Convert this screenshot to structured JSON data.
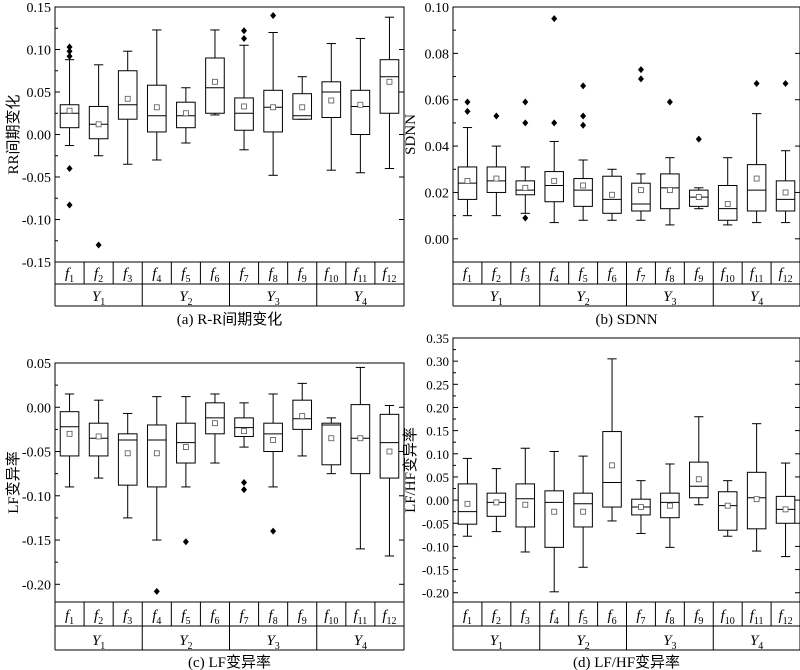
{
  "chart_data": [
    {
      "type": "box",
      "caption": "(a) R-R间期变化",
      "ylabel": "RR间期变化",
      "ylim": [
        -0.15,
        0.15
      ],
      "yticks": [
        -0.15,
        -0.1,
        -0.05,
        0.0,
        0.05,
        0.1,
        0.15
      ],
      "tick_labels": [
        "-0.15",
        "-0.10",
        "-0.05",
        "0.00",
        "0.05",
        "0.10",
        "0.15"
      ],
      "categories": [
        "f1",
        "f2",
        "f3",
        "f4",
        "f5",
        "f6",
        "f7",
        "f8",
        "f9",
        "f10",
        "f11",
        "f12"
      ],
      "groups": [
        "Y1",
        "Y2",
        "Y3",
        "Y4"
      ],
      "boxes": [
        {
          "min": -0.013,
          "q1": 0.008,
          "median": 0.025,
          "q3": 0.035,
          "max": 0.088,
          "mean": 0.028,
          "outliers": [
            0.103,
            0.098,
            0.092,
            -0.04,
            -0.083
          ]
        },
        {
          "min": -0.025,
          "q1": -0.005,
          "median": 0.012,
          "q3": 0.033,
          "max": 0.082,
          "mean": 0.012,
          "outliers": [
            -0.13
          ]
        },
        {
          "min": -0.035,
          "q1": 0.018,
          "median": 0.035,
          "q3": 0.075,
          "max": 0.098,
          "mean": 0.042,
          "outliers": []
        },
        {
          "min": -0.03,
          "q1": 0.003,
          "median": 0.022,
          "q3": 0.058,
          "max": 0.123,
          "mean": 0.032,
          "outliers": []
        },
        {
          "min": -0.01,
          "q1": 0.008,
          "median": 0.022,
          "q3": 0.038,
          "max": 0.055,
          "mean": 0.025,
          "outliers": []
        },
        {
          "min": 0.023,
          "q1": 0.025,
          "median": 0.055,
          "q3": 0.09,
          "max": 0.123,
          "mean": 0.062,
          "outliers": []
        },
        {
          "min": -0.018,
          "q1": 0.005,
          "median": 0.025,
          "q3": 0.043,
          "max": 0.105,
          "mean": 0.033,
          "outliers": [
            0.122,
            0.113
          ]
        },
        {
          "min": -0.048,
          "q1": 0.003,
          "median": 0.032,
          "q3": 0.052,
          "max": 0.12,
          "mean": 0.032,
          "outliers": [
            0.14
          ]
        },
        {
          "min": 0.018,
          "q1": 0.018,
          "median": 0.022,
          "q3": 0.048,
          "max": 0.068,
          "mean": 0.032,
          "outliers": []
        },
        {
          "min": -0.042,
          "q1": 0.02,
          "median": 0.05,
          "q3": 0.062,
          "max": 0.107,
          "mean": 0.04,
          "outliers": []
        },
        {
          "min": -0.045,
          "q1": 0.0,
          "median": 0.033,
          "q3": 0.052,
          "max": 0.113,
          "mean": 0.035,
          "outliers": []
        },
        {
          "min": -0.04,
          "q1": 0.025,
          "median": 0.068,
          "q3": 0.088,
          "max": 0.138,
          "mean": 0.062,
          "outliers": []
        }
      ]
    },
    {
      "type": "box",
      "caption": "(b) SDNN",
      "ylabel": "SDNN",
      "ylim": [
        -0.01,
        0.1
      ],
      "yticks": [
        0.0,
        0.02,
        0.04,
        0.06,
        0.08,
        0.1
      ],
      "tick_labels": [
        "0.00",
        "0.02",
        "0.04",
        "0.06",
        "0.08",
        "0.10"
      ],
      "categories": [
        "f1",
        "f2",
        "f3",
        "f4",
        "f5",
        "f6",
        "f7",
        "f8",
        "f9",
        "f10",
        "f11",
        "f12"
      ],
      "groups": [
        "Y1",
        "Y2",
        "Y3",
        "Y4"
      ],
      "boxes": [
        {
          "min": 0.01,
          "q1": 0.017,
          "median": 0.024,
          "q3": 0.031,
          "max": 0.048,
          "mean": 0.025,
          "outliers": [
            0.059,
            0.055
          ]
        },
        {
          "min": 0.01,
          "q1": 0.02,
          "median": 0.025,
          "q3": 0.031,
          "max": 0.04,
          "mean": 0.026,
          "outliers": [
            0.053
          ]
        },
        {
          "min": 0.011,
          "q1": 0.019,
          "median": 0.021,
          "q3": 0.025,
          "max": 0.031,
          "mean": 0.022,
          "outliers": [
            0.059,
            0.05,
            0.009
          ]
        },
        {
          "min": 0.007,
          "q1": 0.016,
          "median": 0.023,
          "q3": 0.029,
          "max": 0.042,
          "mean": 0.025,
          "outliers": [
            0.095,
            0.05
          ]
        },
        {
          "min": 0.008,
          "q1": 0.014,
          "median": 0.021,
          "q3": 0.026,
          "max": 0.034,
          "mean": 0.023,
          "outliers": [
            0.066,
            0.053,
            0.049
          ]
        },
        {
          "min": 0.008,
          "q1": 0.011,
          "median": 0.017,
          "q3": 0.027,
          "max": 0.03,
          "mean": 0.019,
          "outliers": []
        },
        {
          "min": 0.008,
          "q1": 0.012,
          "median": 0.015,
          "q3": 0.024,
          "max": 0.028,
          "mean": 0.021,
          "outliers": [
            0.073,
            0.069
          ]
        },
        {
          "min": 0.006,
          "q1": 0.013,
          "median": 0.022,
          "q3": 0.028,
          "max": 0.035,
          "mean": 0.021,
          "outliers": [
            0.059
          ]
        },
        {
          "min": 0.013,
          "q1": 0.014,
          "median": 0.018,
          "q3": 0.021,
          "max": 0.022,
          "mean": 0.018,
          "outliers": [
            0.043
          ]
        },
        {
          "min": 0.006,
          "q1": 0.008,
          "median": 0.013,
          "q3": 0.023,
          "max": 0.035,
          "mean": 0.015,
          "outliers": []
        },
        {
          "min": 0.007,
          "q1": 0.012,
          "median": 0.021,
          "q3": 0.032,
          "max": 0.054,
          "mean": 0.026,
          "outliers": [
            0.067
          ]
        },
        {
          "min": 0.007,
          "q1": 0.012,
          "median": 0.017,
          "q3": 0.025,
          "max": 0.038,
          "mean": 0.02,
          "outliers": [
            0.067
          ]
        }
      ]
    },
    {
      "type": "box",
      "caption": "(c) LF变异率",
      "ylabel": "LF变异率",
      "ylim": [
        -0.22,
        0.05
      ],
      "yticks": [
        -0.2,
        -0.15,
        -0.1,
        -0.05,
        0.0,
        0.05
      ],
      "tick_labels": [
        "-0.20",
        "-0.15",
        "-0.10",
        "-0.05",
        "0.00",
        "0.05"
      ],
      "categories": [
        "f1",
        "f2",
        "f3",
        "f4",
        "f5",
        "f6",
        "f7",
        "f8",
        "f9",
        "f10",
        "f11",
        "f12"
      ],
      "groups": [
        "Y1",
        "Y2",
        "Y3",
        "Y4"
      ],
      "boxes": [
        {
          "min": -0.09,
          "q1": -0.055,
          "median": -0.022,
          "q3": -0.005,
          "max": 0.015,
          "mean": -0.03,
          "outliers": []
        },
        {
          "min": -0.08,
          "q1": -0.055,
          "median": -0.035,
          "q3": -0.018,
          "max": 0.008,
          "mean": -0.033,
          "outliers": []
        },
        {
          "min": -0.125,
          "q1": -0.088,
          "median": -0.037,
          "q3": -0.03,
          "max": -0.007,
          "mean": -0.052,
          "outliers": []
        },
        {
          "min": -0.15,
          "q1": -0.09,
          "median": -0.037,
          "q3": -0.02,
          "max": 0.012,
          "mean": -0.052,
          "outliers": [
            -0.208
          ]
        },
        {
          "min": -0.09,
          "q1": -0.063,
          "median": -0.04,
          "q3": -0.018,
          "max": 0.012,
          "mean": -0.045,
          "outliers": [
            -0.152
          ]
        },
        {
          "min": -0.063,
          "q1": -0.03,
          "median": -0.012,
          "q3": 0.005,
          "max": 0.015,
          "mean": -0.018,
          "outliers": []
        },
        {
          "min": -0.045,
          "q1": -0.033,
          "median": -0.023,
          "q3": -0.012,
          "max": 0.005,
          "mean": -0.027,
          "outliers": [
            -0.085,
            -0.093
          ]
        },
        {
          "min": -0.09,
          "q1": -0.05,
          "median": -0.03,
          "q3": -0.018,
          "max": 0.015,
          "mean": -0.037,
          "outliers": [
            -0.14
          ]
        },
        {
          "min": -0.055,
          "q1": -0.025,
          "median": -0.013,
          "q3": 0.008,
          "max": 0.027,
          "mean": -0.01,
          "outliers": []
        },
        {
          "min": -0.075,
          "q1": -0.065,
          "median": -0.02,
          "q3": -0.018,
          "max": -0.012,
          "mean": -0.035,
          "outliers": []
        },
        {
          "min": -0.16,
          "q1": -0.075,
          "median": -0.035,
          "q3": 0.003,
          "max": 0.045,
          "mean": -0.035,
          "outliers": []
        },
        {
          "min": -0.168,
          "q1": -0.08,
          "median": -0.04,
          "q3": -0.008,
          "max": 0.002,
          "mean": -0.05,
          "outliers": []
        }
      ]
    },
    {
      "type": "box",
      "caption": "(d) LF/HF变异率",
      "ylabel": "LF/HF变异率",
      "ylim": [
        -0.22,
        0.35
      ],
      "yticks": [
        -0.2,
        -0.15,
        -0.1,
        -0.05,
        0.0,
        0.05,
        0.1,
        0.15,
        0.2,
        0.25,
        0.3,
        0.35
      ],
      "tick_labels": [
        "-0.20",
        "-0.15",
        "-0.10",
        "-0.05",
        "0.00",
        "0.05",
        "0.10",
        "0.15",
        "0.20",
        "0.25",
        "0.30",
        "0.35"
      ],
      "categories": [
        "f1",
        "f2",
        "f3",
        "f4",
        "f5",
        "f6",
        "f7",
        "f8",
        "f9",
        "f10",
        "f11",
        "f12"
      ],
      "groups": [
        "Y1",
        "Y2",
        "Y3",
        "Y4"
      ],
      "boxes": [
        {
          "min": -0.078,
          "q1": -0.052,
          "median": -0.025,
          "q3": 0.035,
          "max": 0.09,
          "mean": -0.008,
          "outliers": []
        },
        {
          "min": -0.068,
          "q1": -0.035,
          "median": -0.005,
          "q3": 0.015,
          "max": 0.068,
          "mean": -0.005,
          "outliers": []
        },
        {
          "min": -0.112,
          "q1": -0.058,
          "median": 0.003,
          "q3": 0.035,
          "max": 0.112,
          "mean": -0.01,
          "outliers": []
        },
        {
          "min": -0.198,
          "q1": -0.102,
          "median": -0.005,
          "q3": 0.02,
          "max": 0.105,
          "mean": -0.025,
          "outliers": []
        },
        {
          "min": -0.145,
          "q1": -0.058,
          "median": -0.008,
          "q3": 0.015,
          "max": 0.095,
          "mean": -0.025,
          "outliers": []
        },
        {
          "min": -0.045,
          "q1": -0.015,
          "median": 0.038,
          "q3": 0.148,
          "max": 0.305,
          "mean": 0.075,
          "outliers": []
        },
        {
          "min": -0.072,
          "q1": -0.032,
          "median": -0.015,
          "q3": 0.002,
          "max": 0.042,
          "mean": -0.015,
          "outliers": []
        },
        {
          "min": -0.102,
          "q1": -0.038,
          "median": -0.005,
          "q3": 0.015,
          "max": 0.078,
          "mean": -0.012,
          "outliers": []
        },
        {
          "min": -0.01,
          "q1": 0.005,
          "median": 0.03,
          "q3": 0.082,
          "max": 0.18,
          "mean": 0.045,
          "outliers": []
        },
        {
          "min": -0.078,
          "q1": -0.065,
          "median": -0.012,
          "q3": 0.018,
          "max": 0.042,
          "mean": -0.012,
          "outliers": []
        },
        {
          "min": -0.11,
          "q1": -0.062,
          "median": 0.005,
          "q3": 0.06,
          "max": 0.165,
          "mean": 0.002,
          "outliers": []
        },
        {
          "min": -0.122,
          "q1": -0.05,
          "median": -0.02,
          "q3": 0.008,
          "max": 0.08,
          "mean": -0.02,
          "outliers": []
        }
      ]
    }
  ]
}
